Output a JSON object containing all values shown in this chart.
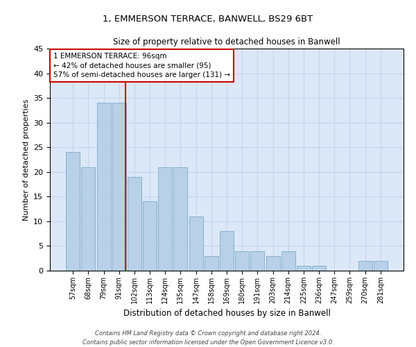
{
  "title_line1": "1, EMMERSON TERRACE, BANWELL, BS29 6BT",
  "title_line2": "Size of property relative to detached houses in Banwell",
  "xlabel": "Distribution of detached houses by size in Banwell",
  "ylabel": "Number of detached properties",
  "categories": [
    "57sqm",
    "68sqm",
    "79sqm",
    "91sqm",
    "102sqm",
    "113sqm",
    "124sqm",
    "135sqm",
    "147sqm",
    "158sqm",
    "169sqm",
    "180sqm",
    "191sqm",
    "203sqm",
    "214sqm",
    "225sqm",
    "236sqm",
    "247sqm",
    "259sqm",
    "270sqm",
    "281sqm"
  ],
  "values": [
    24,
    21,
    34,
    34,
    19,
    14,
    21,
    21,
    11,
    3,
    8,
    4,
    4,
    3,
    4,
    1,
    1,
    0,
    0,
    2,
    2
  ],
  "bar_color": "#b8d0e8",
  "bar_edge_color": "#7aaaca",
  "annotation_box_text": "1 EMMERSON TERRACE: 96sqm\n← 42% of detached houses are smaller (95)\n57% of semi-detached houses are larger (131) →",
  "annotation_box_color": "#ffffff",
  "annotation_box_edge_color": "#cc0000",
  "vline_x_index": 3.42,
  "vline_color": "#cc0000",
  "grid_color": "#c8d4e8",
  "background_color": "#dce8f8",
  "ylim": [
    0,
    45
  ],
  "yticks": [
    0,
    5,
    10,
    15,
    20,
    25,
    30,
    35,
    40,
    45
  ],
  "footnote_line1": "Contains HM Land Registry data © Crown copyright and database right 2024.",
  "footnote_line2": "Contains public sector information licensed under the Open Government Licence v3.0."
}
